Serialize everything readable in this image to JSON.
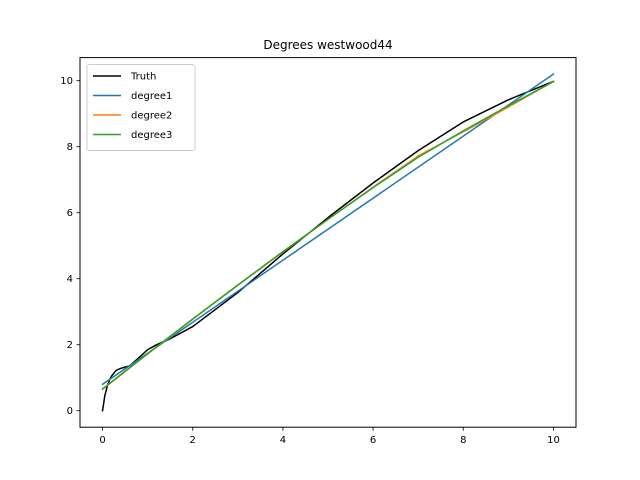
{
  "chart_data": {
    "type": "line",
    "title": "Degrees westwood44",
    "xlabel": "",
    "ylabel": "",
    "xlim": [
      -0.5,
      10.5
    ],
    "ylim": [
      -0.5,
      10.7
    ],
    "xticks": [
      "0",
      "2",
      "4",
      "6",
      "8",
      "10"
    ],
    "yticks": [
      "0",
      "2",
      "4",
      "6",
      "8",
      "10"
    ],
    "grid": false,
    "legend_position": "top-left",
    "series": [
      {
        "name": "Truth",
        "color": "#000000",
        "x": [
          0,
          0.05,
          0.1,
          0.15,
          0.2,
          0.3,
          0.4,
          0.5,
          0.6,
          0.8,
          1.0,
          1.2,
          1.5,
          2.0,
          3.0,
          4.0,
          5.0,
          6.0,
          7.0,
          8.0,
          9.0,
          10.0
        ],
        "y": [
          0.0,
          0.45,
          0.72,
          0.92,
          1.05,
          1.22,
          1.28,
          1.32,
          1.36,
          1.6,
          1.85,
          2.0,
          2.18,
          2.55,
          3.58,
          4.75,
          5.85,
          6.9,
          7.88,
          8.75,
          9.42,
          9.98
        ]
      },
      {
        "name": "degree1",
        "color": "#1f77b4",
        "x": [
          0,
          10
        ],
        "y": [
          0.8,
          10.2
        ]
      },
      {
        "name": "degree2",
        "color": "#ff7f0e",
        "x": [
          0,
          1,
          2,
          3,
          4,
          5,
          6,
          7,
          8,
          9,
          10
        ],
        "y": [
          0.65,
          1.72,
          2.77,
          3.8,
          4.81,
          5.8,
          6.77,
          7.72,
          8.45,
          9.2,
          9.98
        ]
      },
      {
        "name": "degree3",
        "color": "#2ca02c",
        "x": [
          0,
          1,
          2,
          3,
          4,
          5,
          6,
          7,
          8,
          9,
          10
        ],
        "y": [
          0.66,
          1.73,
          2.78,
          3.81,
          4.82,
          5.8,
          6.76,
          7.68,
          8.48,
          9.24,
          9.97
        ]
      }
    ]
  }
}
